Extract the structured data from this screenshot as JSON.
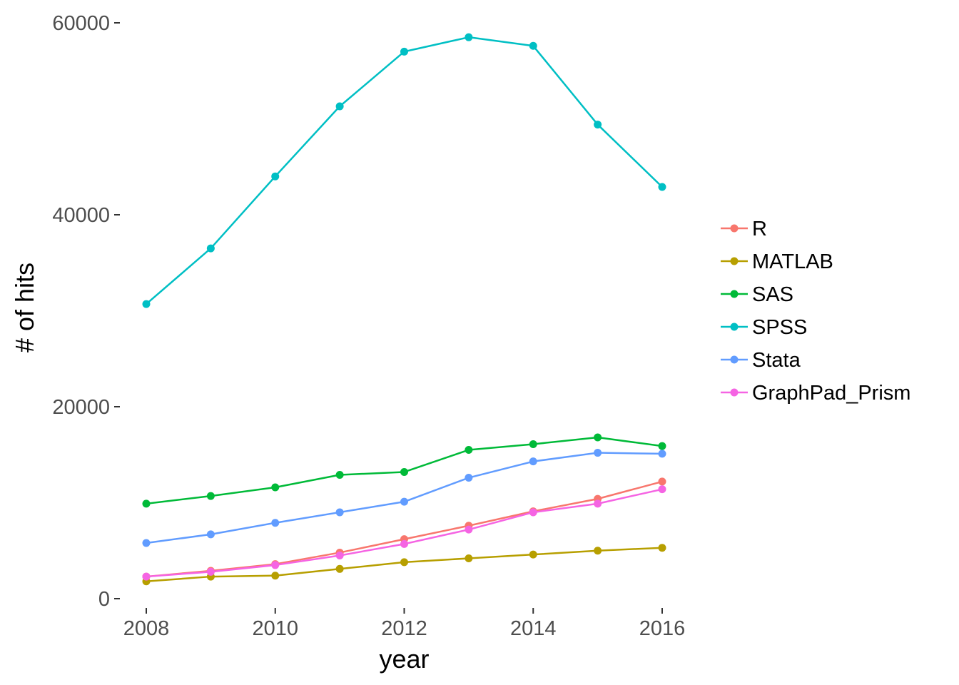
{
  "chart_data": {
    "type": "line",
    "xlabel": "year",
    "ylabel": "# of hits",
    "xlim": [
      2008,
      2016
    ],
    "ylim": [
      0,
      60000
    ],
    "x_ticks": [
      2008,
      2010,
      2012,
      2014,
      2016
    ],
    "y_ticks": [
      0,
      20000,
      40000,
      60000
    ],
    "grid": false,
    "legend_position": "right",
    "x": [
      2008,
      2009,
      2010,
      2011,
      2012,
      2013,
      2014,
      2015,
      2016
    ],
    "series": [
      {
        "name": "R",
        "color": "#F8766D",
        "values": [
          2300,
          2900,
          3600,
          4800,
          6200,
          7600,
          9100,
          10400,
          12200
        ]
      },
      {
        "name": "MATLAB",
        "color": "#B79F00",
        "values": [
          1800,
          2300,
          2400,
          3100,
          3800,
          4200,
          4600,
          5000,
          5300
        ]
      },
      {
        "name": "SAS",
        "color": "#00BA38",
        "values": [
          9900,
          10700,
          11600,
          12900,
          13200,
          15500,
          16100,
          16800,
          15900
        ]
      },
      {
        "name": "SPSS",
        "color": "#00BFC4",
        "values": [
          30700,
          36500,
          44000,
          51300,
          57000,
          58500,
          57600,
          49400,
          42900
        ]
      },
      {
        "name": "Stata",
        "color": "#619CFF",
        "values": [
          5800,
          6700,
          7900,
          9000,
          10100,
          12600,
          14300,
          15200,
          15100
        ]
      },
      {
        "name": "GraphPad_Prism",
        "color": "#F564E3",
        "values": [
          2300,
          2800,
          3500,
          4500,
          5700,
          7200,
          9000,
          9900,
          11400
        ]
      }
    ]
  }
}
